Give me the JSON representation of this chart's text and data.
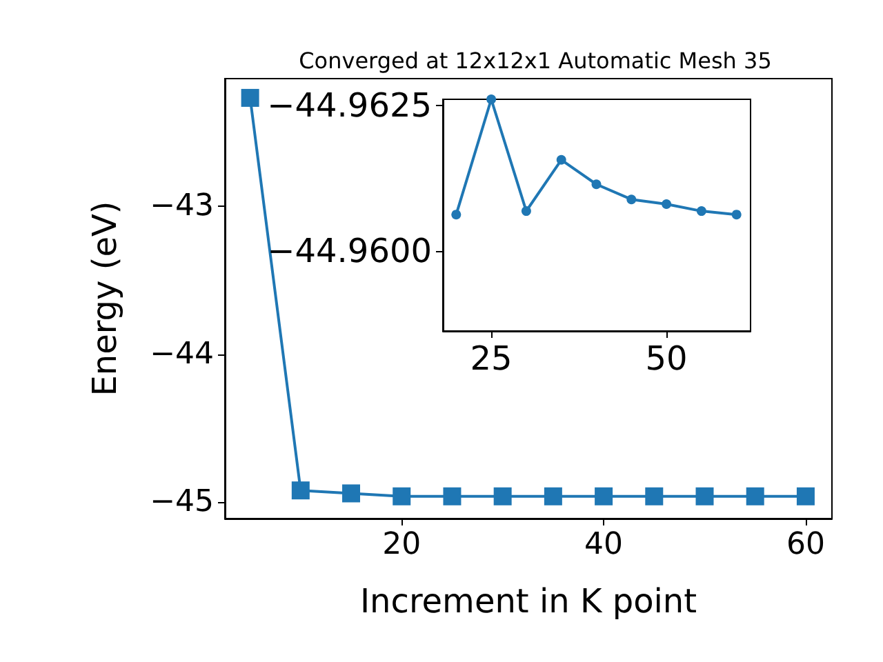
{
  "chart_data": [
    {
      "type": "line",
      "title": "Converged at 12x12x1 Automatic Mesh 35",
      "xlabel": "Increment in K point",
      "ylabel": "Energy (eV)",
      "x": [
        5,
        10,
        15,
        20,
        25,
        30,
        35,
        40,
        45,
        50,
        55,
        60
      ],
      "series": [
        {
          "color": "#1f77b4",
          "values": [
            -42.27,
            -44.92,
            -44.94,
            -44.96,
            -44.96,
            -44.96,
            -44.96,
            -44.96,
            -44.96,
            -44.96,
            -44.96,
            -44.96
          ]
        }
      ],
      "xlim": [
        2.5,
        62.6
      ],
      "xticks": [
        20,
        40,
        60
      ],
      "ylim": [
        -45.11,
        -42.14
      ],
      "yticks": [
        {
          "value": -45,
          "label": "−45"
        },
        {
          "value": -44,
          "label": "−44"
        },
        {
          "value": -43,
          "label": "−43"
        }
      ],
      "marker": "square",
      "line_style": "solid"
    },
    {
      "type": "line",
      "x": [
        20,
        25,
        30,
        35,
        40,
        45,
        50,
        55,
        60
      ],
      "series": [
        {
          "color": "#1f77b4",
          "values": [
            -44.96063,
            -44.96261,
            -44.96069,
            -44.96157,
            -44.96115,
            -44.96089,
            -44.96081,
            -44.96069,
            -44.96063
          ]
        }
      ],
      "xlim": [
        18.1,
        62
      ],
      "xticks": [
        25,
        50
      ],
      "ylim": [
        -44.95863,
        -44.96261
      ],
      "yticks": [
        {
          "value": -44.9625,
          "label": "−44.9625"
        },
        {
          "value": -44.96,
          "label": "−44.9600"
        }
      ],
      "marker": "circle",
      "line_style": "solid"
    }
  ]
}
